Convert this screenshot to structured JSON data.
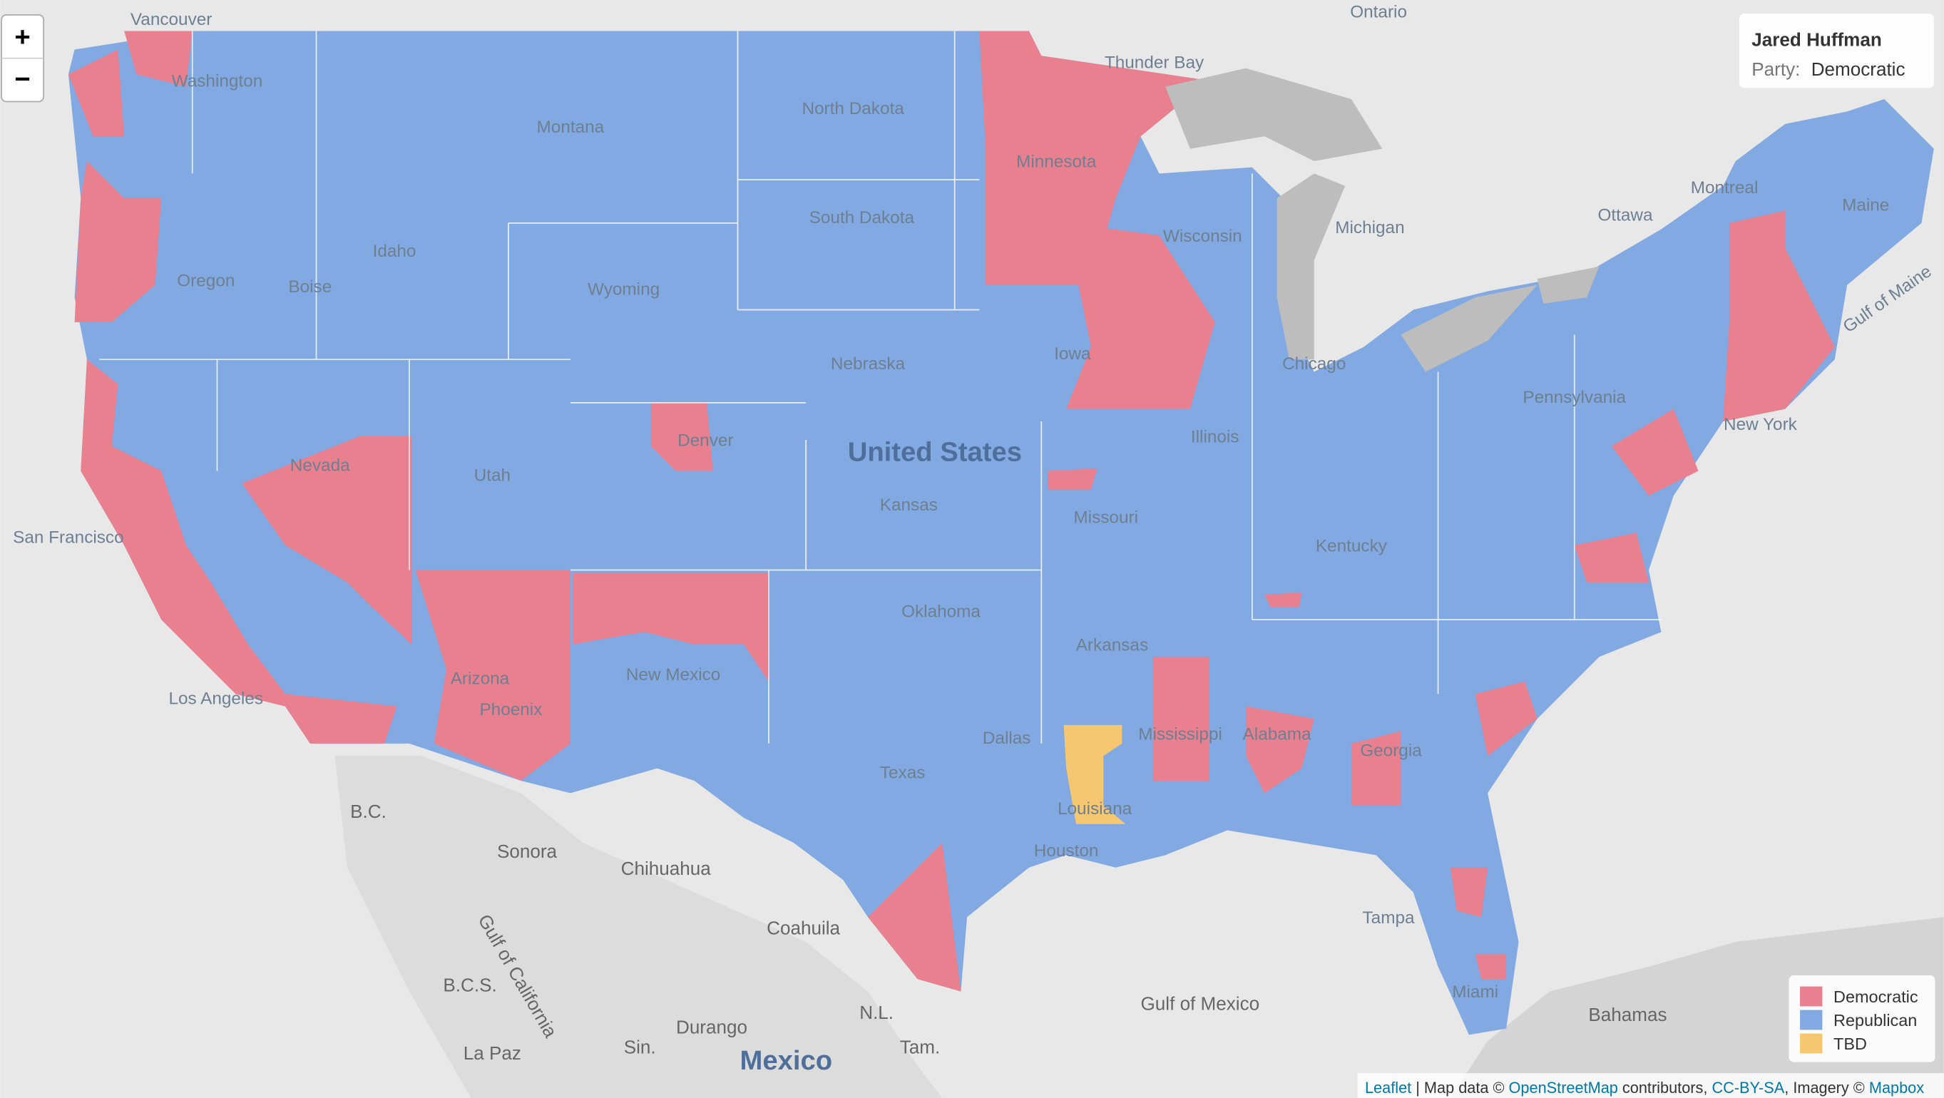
{
  "zoom_controls": {
    "zoom_in": "+",
    "zoom_out": "−"
  },
  "info_box": {
    "name": "Jared Huffman",
    "party_label": "Party:",
    "party": "Democratic"
  },
  "legend": [
    {
      "label": "Democratic",
      "color": "#e8808f"
    },
    {
      "label": "Republican",
      "color": "#82a9e2"
    },
    {
      "label": "TBD",
      "color": "#f4c770"
    }
  ],
  "place_labels": [
    "Vancouver",
    "Ontario",
    "Thunder Bay",
    "Montreal",
    "Ottawa",
    "Maine",
    "Gulf of Maine",
    "New York",
    "Washington",
    "Montana",
    "North Dakota",
    "Minnesota",
    "South Dakota",
    "Wisconsin",
    "Michigan",
    "Oregon",
    "Boise",
    "Idaho",
    "Wyoming",
    "Nebraska",
    "Iowa",
    "Chicago",
    "Pennsylvania",
    "Nevada",
    "Utah",
    "Denver",
    "United States",
    "Kansas",
    "Illinois",
    "Missouri",
    "Kentucky",
    "San Francisco",
    "Oklahoma",
    "Arkansas",
    "Los Angeles",
    "Arizona",
    "Phoenix",
    "New Mexico",
    "Dallas",
    "Texas",
    "Louisiana",
    "Mississippi",
    "Alabama",
    "Georgia",
    "Houston",
    "Tampa",
    "Miami",
    "B.C.",
    "Sonora",
    "Chihuahua",
    "Coahuila",
    "Gulf of California",
    "B.C.S.",
    "Durango",
    "N.L.",
    "La Paz",
    "Sin.",
    "Tam.",
    "Mexico",
    "Gulf of Mexico",
    "Bahamas"
  ],
  "attribution": {
    "leaflet": "Leaflet",
    "map_data": " | Map data © ",
    "osm": "OpenStreetMap",
    "contributors": " contributors, ",
    "license": "CC-BY-SA",
    "imagery": ", Imagery © ",
    "mapbox": "Mapbox"
  }
}
